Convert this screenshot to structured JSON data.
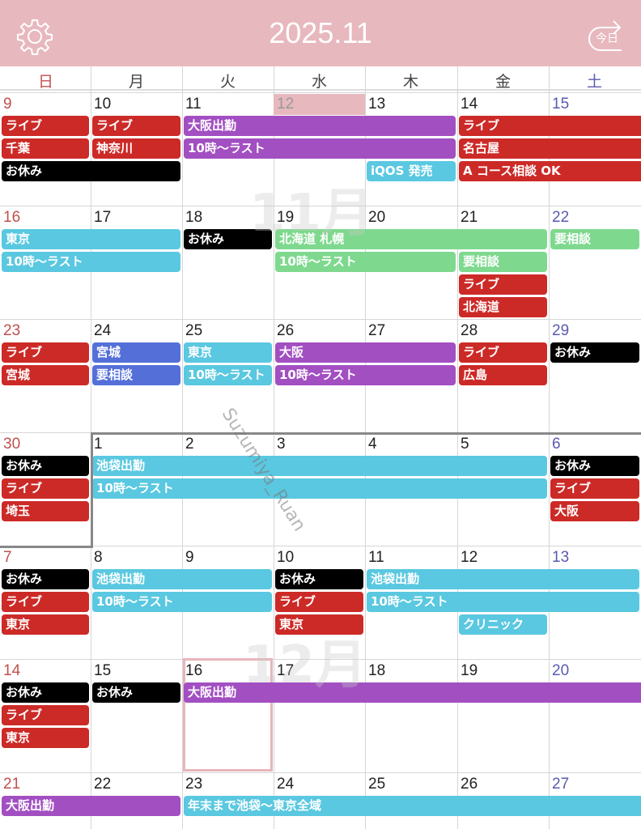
{
  "header": {
    "title": "2025.11",
    "today_label": "今日",
    "settings_icon": "gear-icon",
    "today_icon": "return-today-icon"
  },
  "weekdays": [
    "日",
    "月",
    "火",
    "水",
    "木",
    "金",
    "土"
  ],
  "colors": {
    "header": "#e7b8be",
    "sunday": "#c0504d",
    "saturday": "#5a5ab0",
    "red": "#cc2a27",
    "purple": "#a24fc2",
    "cyan": "#5ac8e0",
    "black": "#000000",
    "green": "#7ed98e",
    "blue": "#5470d8",
    "today_bg": "#e7b8be"
  },
  "month_labels": [
    "11月",
    "12月"
  ],
  "watermark": "Suzumiya_Ruan",
  "today": "11/12",
  "selected": "12/16",
  "weeks": [
    {
      "days": [
        "9",
        "10",
        "11",
        "12",
        "13",
        "14",
        "15"
      ],
      "events": [
        {
          "t": "ライブ",
          "s": 0,
          "e": 0,
          "c": "red"
        },
        {
          "t": "ライブ",
          "s": 1,
          "e": 1,
          "c": "red"
        },
        {
          "t": "大阪出勤",
          "s": 2,
          "e": 4,
          "c": "purple"
        },
        {
          "t": "ライブ",
          "s": 5,
          "e": 6,
          "c": "red",
          "open": true
        },
        {
          "t": "千葉",
          "s": 0,
          "e": 0,
          "c": "red"
        },
        {
          "t": "神奈川",
          "s": 1,
          "e": 1,
          "c": "red"
        },
        {
          "t": "10時～ラスト",
          "s": 2,
          "e": 4,
          "c": "purple"
        },
        {
          "t": "名古屋",
          "s": 5,
          "e": 6,
          "c": "red",
          "open": true
        },
        {
          "t": "お休み",
          "s": 0,
          "e": 1,
          "c": "black"
        },
        {
          "t": "iQOS 発売",
          "s": 4,
          "e": 4,
          "c": "cyan"
        },
        {
          "t": "A コース相談 OK",
          "s": 5,
          "e": 6,
          "c": "red",
          "open": true
        }
      ]
    },
    {
      "days": [
        "16",
        "17",
        "18",
        "19",
        "20",
        "21",
        "22"
      ],
      "events": [
        {
          "t": "東京",
          "s": 0,
          "e": 1,
          "c": "cyan"
        },
        {
          "t": "お休み",
          "s": 2,
          "e": 2,
          "c": "black"
        },
        {
          "t": "北海道 札幌",
          "s": 3,
          "e": 5,
          "c": "green"
        },
        {
          "t": "要相談",
          "s": 6,
          "e": 6,
          "c": "green"
        },
        {
          "t": "10時～ラスト",
          "s": 0,
          "e": 1,
          "c": "cyan"
        },
        {
          "t": "10時～ラスト",
          "s": 3,
          "e": 4,
          "c": "green"
        },
        {
          "t": "要相談",
          "s": 5,
          "e": 5,
          "c": "green"
        },
        {
          "t": "ライブ",
          "s": 5,
          "e": 5,
          "c": "red"
        },
        {
          "t": "北海道",
          "s": 5,
          "e": 5,
          "c": "red"
        }
      ]
    },
    {
      "days": [
        "23",
        "24",
        "25",
        "26",
        "27",
        "28",
        "29"
      ],
      "events": [
        {
          "t": "ライブ",
          "s": 0,
          "e": 0,
          "c": "red"
        },
        {
          "t": "宮城",
          "s": 1,
          "e": 1,
          "c": "blue"
        },
        {
          "t": "東京",
          "s": 2,
          "e": 2,
          "c": "cyan"
        },
        {
          "t": "大阪",
          "s": 3,
          "e": 4,
          "c": "purple"
        },
        {
          "t": "ライブ",
          "s": 5,
          "e": 5,
          "c": "red"
        },
        {
          "t": "お休み",
          "s": 6,
          "e": 6,
          "c": "black"
        },
        {
          "t": "宮城",
          "s": 0,
          "e": 0,
          "c": "red"
        },
        {
          "t": "要相談",
          "s": 1,
          "e": 1,
          "c": "blue"
        },
        {
          "t": "10時～ラスト",
          "s": 2,
          "e": 2,
          "c": "cyan"
        },
        {
          "t": "10時～ラスト",
          "s": 3,
          "e": 4,
          "c": "purple"
        },
        {
          "t": "広島",
          "s": 5,
          "e": 5,
          "c": "red"
        }
      ]
    },
    {
      "days": [
        "30",
        "1",
        "2",
        "3",
        "4",
        "5",
        "6"
      ],
      "events": [
        {
          "t": "お休み",
          "s": 0,
          "e": 0,
          "c": "black"
        },
        {
          "t": "池袋出勤",
          "s": 1,
          "e": 5,
          "c": "cyan"
        },
        {
          "t": "お休み",
          "s": 6,
          "e": 6,
          "c": "black"
        },
        {
          "t": "ライブ",
          "s": 0,
          "e": 0,
          "c": "red"
        },
        {
          "t": "10時～ラスト",
          "s": 1,
          "e": 5,
          "c": "cyan"
        },
        {
          "t": "ライブ",
          "s": 6,
          "e": 6,
          "c": "red"
        },
        {
          "t": "埼玉",
          "s": 0,
          "e": 0,
          "c": "red"
        },
        {
          "t": "大阪",
          "s": 6,
          "e": 6,
          "c": "red"
        }
      ]
    },
    {
      "days": [
        "7",
        "8",
        "9",
        "10",
        "11",
        "12",
        "13"
      ],
      "events": [
        {
          "t": "お休み",
          "s": 0,
          "e": 0,
          "c": "black"
        },
        {
          "t": "池袋出勤",
          "s": 1,
          "e": 2,
          "c": "cyan"
        },
        {
          "t": "お休み",
          "s": 3,
          "e": 3,
          "c": "black"
        },
        {
          "t": "池袋出勤",
          "s": 4,
          "e": 6,
          "c": "cyan"
        },
        {
          "t": "ライブ",
          "s": 0,
          "e": 0,
          "c": "red"
        },
        {
          "t": "10時～ラスト",
          "s": 1,
          "e": 2,
          "c": "cyan"
        },
        {
          "t": "ライブ",
          "s": 3,
          "e": 3,
          "c": "red"
        },
        {
          "t": "10時～ラスト",
          "s": 4,
          "e": 6,
          "c": "cyan"
        },
        {
          "t": "東京",
          "s": 0,
          "e": 0,
          "c": "red"
        },
        {
          "t": "東京",
          "s": 3,
          "e": 3,
          "c": "red"
        },
        {
          "t": "クリニック",
          "s": 5,
          "e": 5,
          "c": "cyan"
        }
      ]
    },
    {
      "days": [
        "14",
        "15",
        "16",
        "17",
        "18",
        "19",
        "20"
      ],
      "events": [
        {
          "t": "お休み",
          "s": 0,
          "e": 0,
          "c": "black"
        },
        {
          "t": "お休み",
          "s": 1,
          "e": 1,
          "c": "black"
        },
        {
          "t": "大阪出勤",
          "s": 2,
          "e": 6,
          "c": "purple",
          "open": true
        },
        {
          "t": "ライブ",
          "s": 0,
          "e": 0,
          "c": "red"
        },
        {
          "t": "東京",
          "s": 0,
          "e": 0,
          "c": "red"
        }
      ]
    },
    {
      "days": [
        "21",
        "22",
        "23",
        "24",
        "25",
        "26",
        "27"
      ],
      "events": [
        {
          "t": "大阪出勤",
          "s": 0,
          "e": 1,
          "c": "purple"
        },
        {
          "t": "年末まで池袋～東京全域",
          "s": 2,
          "e": 6,
          "c": "cyan",
          "open": true
        }
      ]
    }
  ]
}
